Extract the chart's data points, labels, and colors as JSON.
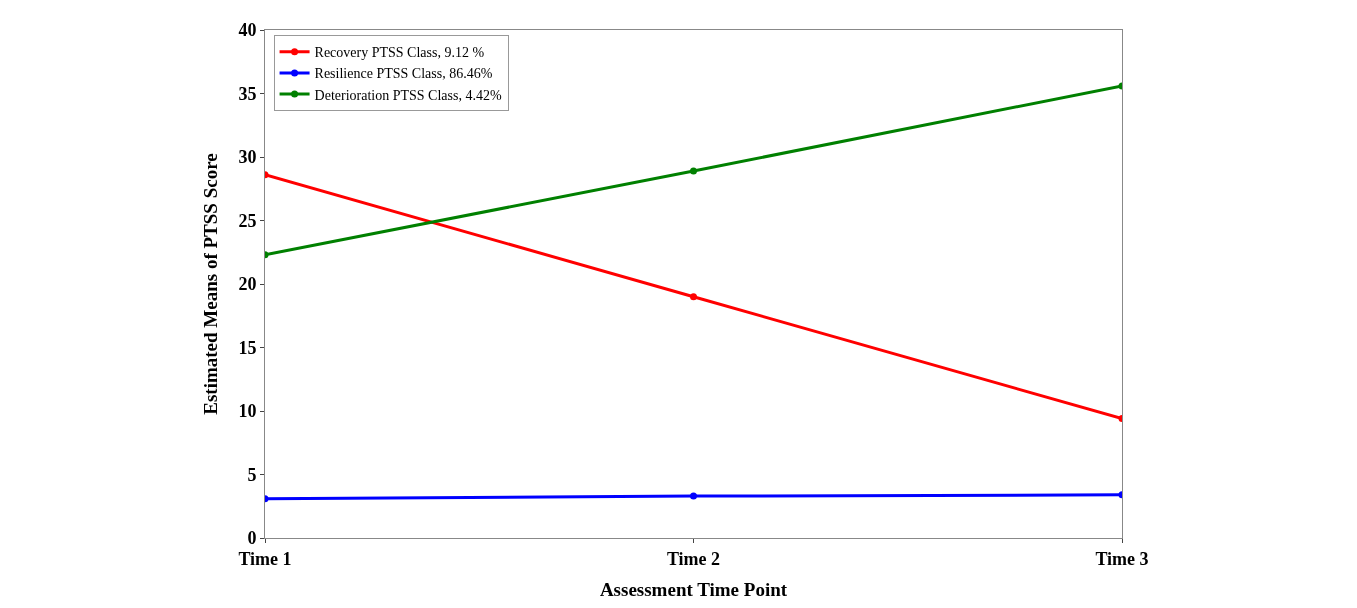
{
  "chart_data": {
    "type": "line",
    "xlabel": "Assessment Time Point",
    "ylabel": "Estimated Means of PTSS Score",
    "categories": [
      "Time 1",
      "Time 2",
      "Time 3"
    ],
    "series": [
      {
        "name": "Recovery PTSS Class, 9.12 %",
        "color": "#ff0000",
        "values": [
          28.6,
          19.0,
          9.4
        ]
      },
      {
        "name": "Resilience PTSS Class, 86.46%",
        "color": "#0000ff",
        "values": [
          3.1,
          3.3,
          3.4
        ]
      },
      {
        "name": "Deterioration PTSS Class, 4.42%",
        "color": "#008000",
        "values": [
          22.3,
          28.9,
          35.6
        ]
      }
    ],
    "ylim": [
      0,
      40
    ],
    "yticks": [
      0,
      5,
      10,
      15,
      20,
      25,
      30,
      35,
      40
    ],
    "legend": "top left",
    "marker": "circle",
    "line_style": "solid"
  }
}
